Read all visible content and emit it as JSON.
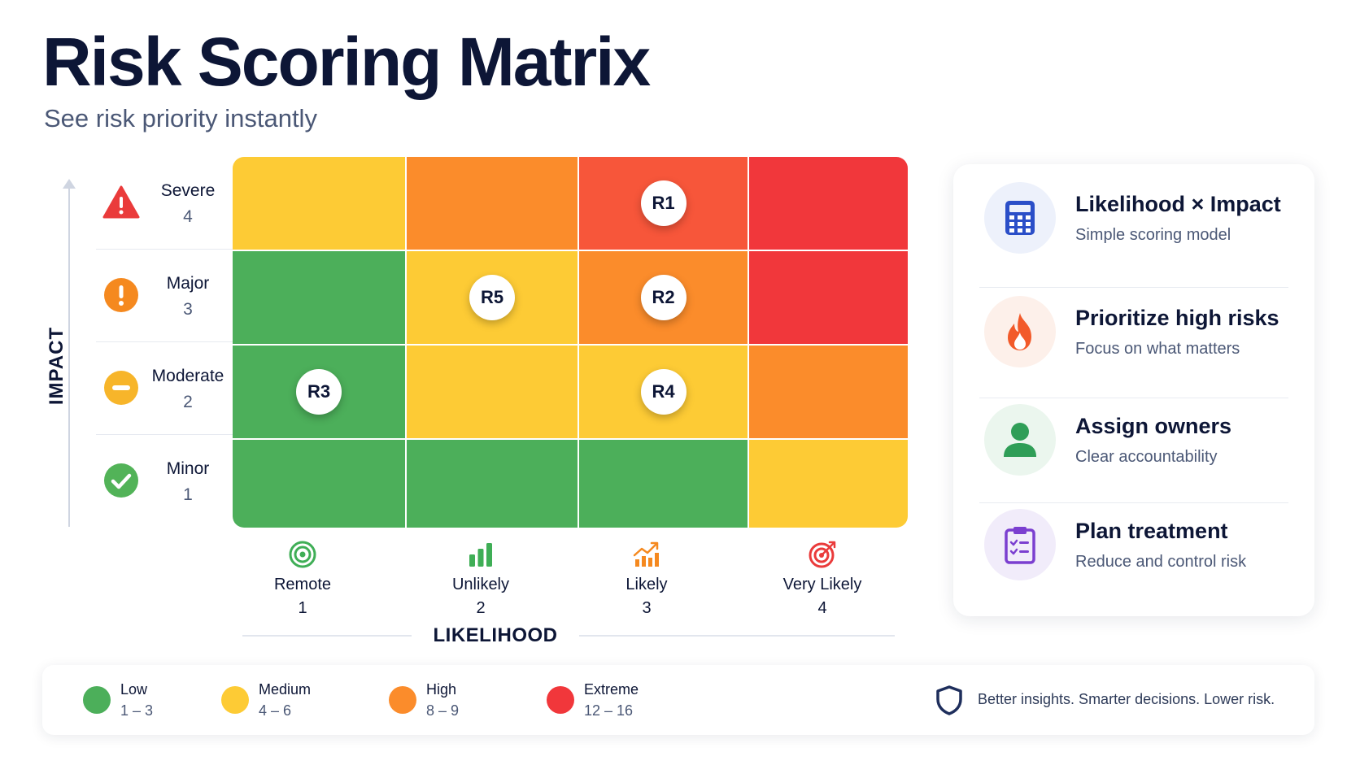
{
  "header": {
    "title": "Risk Scoring Matrix",
    "subtitle": "See risk priority instantly"
  },
  "impact_axis": {
    "label": "IMPACT",
    "rows": [
      {
        "name": "Severe",
        "score": "4",
        "icon": "warning-triangle-icon",
        "color": "#ea3b3b"
      },
      {
        "name": "Major",
        "score": "3",
        "icon": "exclamation-circle-icon",
        "color": "#f5891f"
      },
      {
        "name": "Moderate",
        "score": "2",
        "icon": "minus-circle-icon",
        "color": "#f7b52a"
      },
      {
        "name": "Minor",
        "score": "1",
        "icon": "check-circle-icon",
        "color": "#52b358"
      }
    ]
  },
  "likelihood_axis": {
    "label": "LIKELIHOOD",
    "columns": [
      {
        "name": "Remote",
        "score": "1",
        "icon": "target-rings-icon",
        "color": "#3fae56"
      },
      {
        "name": "Unlikely",
        "score": "2",
        "icon": "bar-chart-icon",
        "color": "#3fae56"
      },
      {
        "name": "Likely",
        "score": "3",
        "icon": "trend-up-icon",
        "color": "#f5891f"
      },
      {
        "name": "Very Likely",
        "score": "4",
        "icon": "bullseye-icon",
        "color": "#ea3b3b"
      }
    ]
  },
  "matrix": {
    "colors": {
      "low": "#4caf5a",
      "medium": "#fdcb35",
      "high": "#fb8c2b",
      "extreme": "#f1373b",
      "extreme_soft": "#f7563a"
    },
    "cells": [
      [
        "medium",
        "high",
        "extreme_soft",
        "extreme"
      ],
      [
        "low",
        "medium",
        "high",
        "extreme"
      ],
      [
        "low",
        "medium",
        "medium",
        "high"
      ],
      [
        "low",
        "low",
        "low",
        "medium"
      ]
    ],
    "risks": [
      {
        "label": "R1",
        "impact": 4,
        "likelihood": 3
      },
      {
        "label": "R5",
        "impact": 3,
        "likelihood": 2
      },
      {
        "label": "R2",
        "impact": 3,
        "likelihood": 3
      },
      {
        "label": "R3",
        "impact": 2,
        "likelihood": 1
      },
      {
        "label": "R4",
        "impact": 2,
        "likelihood": 3
      }
    ]
  },
  "features": [
    {
      "title": "Likelihood × Impact",
      "desc": "Simple scoring model",
      "icon": "calculator-icon",
      "color": "#2b4fc8",
      "bg": "#edf1fb"
    },
    {
      "title": "Prioritize high risks",
      "desc": "Focus on what matters",
      "icon": "flame-icon",
      "color": "#f25a2a",
      "bg": "#fdf0ea"
    },
    {
      "title": "Assign owners",
      "desc": "Clear accountability",
      "icon": "user-icon",
      "color": "#2f9e57",
      "bg": "#ebf6ee"
    },
    {
      "title": "Plan treatment",
      "desc": "Reduce and control risk",
      "icon": "clipboard-icon",
      "color": "#7b3fd0",
      "bg": "#f1ecfa"
    }
  ],
  "legend": {
    "items": [
      {
        "name": "Low",
        "range": "1 – 3",
        "color": "#4caf5a"
      },
      {
        "name": "Medium",
        "range": "4 – 6",
        "color": "#fdcb35"
      },
      {
        "name": "High",
        "range": "8 – 9",
        "color": "#fb8c2b"
      },
      {
        "name": "Extreme",
        "range": "12  –  16",
        "color": "#f1373b"
      }
    ],
    "tagline": "Better insights. Smarter decisions. Lower risk.",
    "tagline_icon": "shield-icon"
  }
}
